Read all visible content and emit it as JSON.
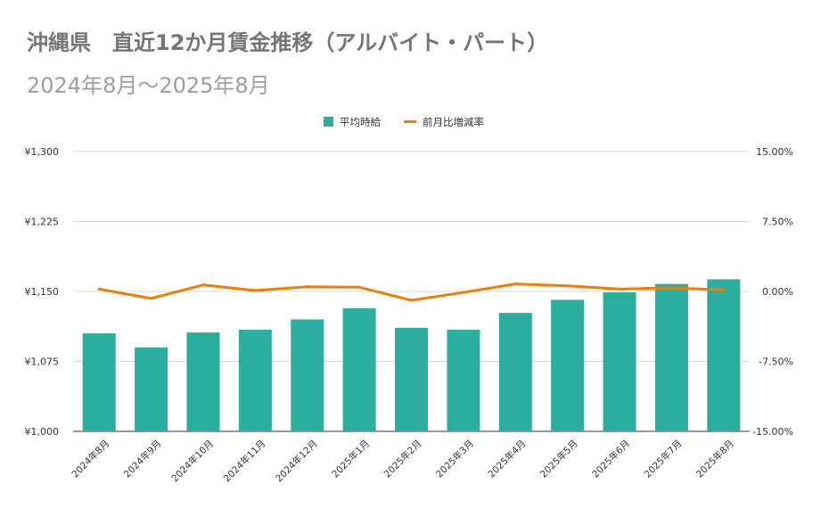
{
  "chart_data": {
    "type": "bar",
    "title": "沖縄県　直近12か月賃金推移（アルバイト・パート）",
    "subtitle": "2024年8月～2025年8月",
    "categories": [
      "2024年8月",
      "2024年9月",
      "2024年10月",
      "2024年11月",
      "2024年12月",
      "2025年1月",
      "2025年2月",
      "2025年3月",
      "2025年4月",
      "2025年5月",
      "2025年6月",
      "2025年7月",
      "2025年8月"
    ],
    "series": [
      {
        "name": "平均時給",
        "type": "bar",
        "axis": "left",
        "color": "#2bae9e",
        "values": [
          1105,
          1090,
          1106,
          1109,
          1120,
          1132,
          1111,
          1109,
          1127,
          1141,
          1149,
          1158,
          1163
        ]
      },
      {
        "name": "前月比増減率",
        "type": "line",
        "axis": "right",
        "color": "#f57c00",
        "values": [
          0.25,
          -0.75,
          0.7,
          0.1,
          0.5,
          0.45,
          -0.95,
          -0.1,
          0.8,
          0.6,
          0.25,
          0.4,
          0.15
        ]
      }
    ],
    "y_left": {
      "min": 1000,
      "max": 1300,
      "ticks": [
        "¥1,000",
        "¥1,075",
        "¥1,150",
        "¥1,225",
        "¥1,300"
      ],
      "tick_values": [
        1000,
        1075,
        1150,
        1225,
        1300
      ]
    },
    "y_right": {
      "min": -15,
      "max": 15,
      "ticks": [
        "-15.00%",
        "-7.50%",
        "0.00%",
        "7.50%",
        "15.00%"
      ],
      "tick_values": [
        -15,
        -7.5,
        0,
        7.5,
        15
      ]
    },
    "legend": {
      "position": "top-center",
      "items": [
        "平均時給",
        "前月比増減率"
      ]
    },
    "grid": true
  }
}
